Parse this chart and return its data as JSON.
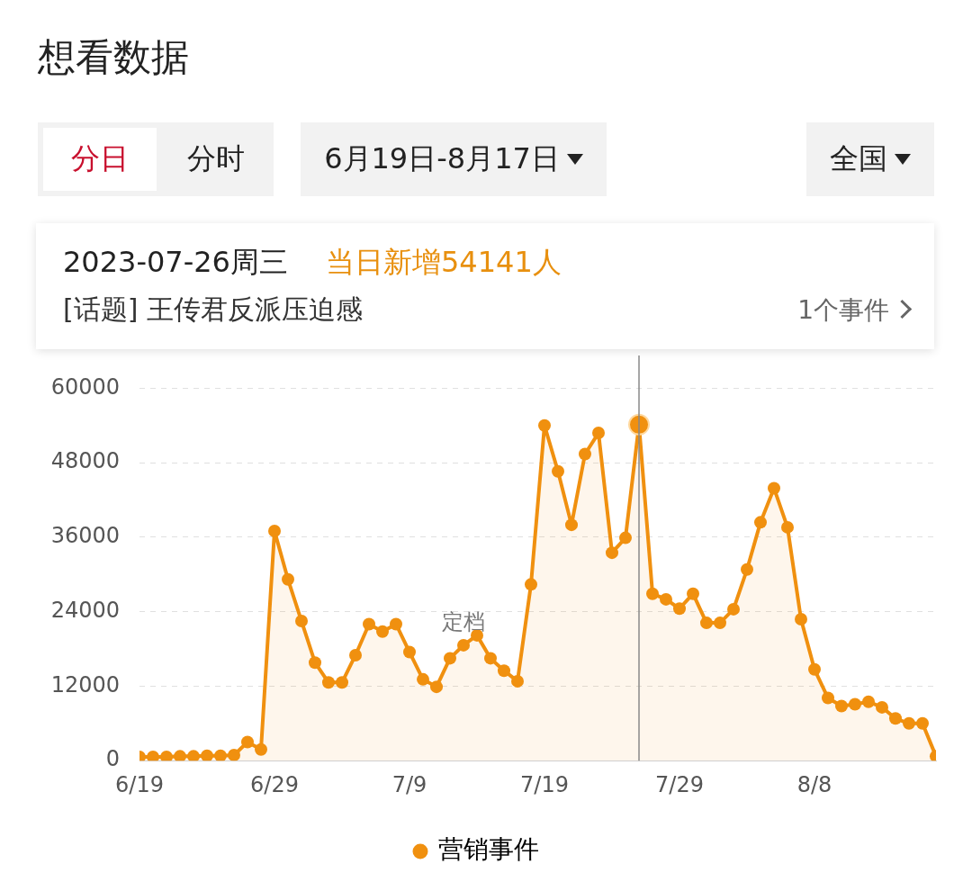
{
  "chart_data": {
    "type": "area",
    "title": "想看数据",
    "x": [
      "2023-06-19",
      "2023-06-20",
      "2023-06-21",
      "2023-06-22",
      "2023-06-23",
      "2023-06-24",
      "2023-06-25",
      "2023-06-26",
      "2023-06-27",
      "2023-06-28",
      "2023-06-29",
      "2023-06-30",
      "2023-07-01",
      "2023-07-02",
      "2023-07-03",
      "2023-07-04",
      "2023-07-05",
      "2023-07-06",
      "2023-07-07",
      "2023-07-08",
      "2023-07-09",
      "2023-07-10",
      "2023-07-11",
      "2023-07-12",
      "2023-07-13",
      "2023-07-14",
      "2023-07-15",
      "2023-07-16",
      "2023-07-17",
      "2023-07-18",
      "2023-07-19",
      "2023-07-20",
      "2023-07-21",
      "2023-07-22",
      "2023-07-23",
      "2023-07-24",
      "2023-07-25",
      "2023-07-26",
      "2023-07-27",
      "2023-07-28",
      "2023-07-29",
      "2023-07-30",
      "2023-07-31",
      "2023-08-01",
      "2023-08-02",
      "2023-08-03",
      "2023-08-04",
      "2023-08-05",
      "2023-08-06",
      "2023-08-07",
      "2023-08-08",
      "2023-08-09",
      "2023-08-10",
      "2023-08-11",
      "2023-08-12",
      "2023-08-13",
      "2023-08-14",
      "2023-08-15",
      "2023-08-16",
      "2023-08-17"
    ],
    "series": [
      {
        "name": "营销事件",
        "color": "#f0900f",
        "values": [
          600,
          600,
          600,
          700,
          700,
          800,
          800,
          900,
          3000,
          1800,
          37000,
          29200,
          22500,
          15800,
          12600,
          12600,
          17000,
          22000,
          20800,
          22000,
          17500,
          13100,
          11900,
          16500,
          18600,
          20200,
          16500,
          14500,
          12800,
          28400,
          54000,
          46600,
          38000,
          49400,
          52800,
          33500,
          35900,
          54141,
          26900,
          26000,
          24500,
          26900,
          22200,
          22200,
          24400,
          30800,
          38400,
          43900,
          37600,
          22800,
          14700,
          10100,
          8800,
          9100,
          9500,
          8600,
          6800,
          6000,
          6000,
          700
        ]
      }
    ],
    "xlim": [
      "2023-06-19",
      "2023-08-17"
    ],
    "xticks": [
      {
        "value": "2023-06-19",
        "label": "6/19"
      },
      {
        "value": "2023-06-29",
        "label": "6/29"
      },
      {
        "value": "2023-07-09",
        "label": "7/9"
      },
      {
        "value": "2023-07-19",
        "label": "7/19"
      },
      {
        "value": "2023-07-29",
        "label": "7/29"
      },
      {
        "value": "2023-08-08",
        "label": "8/8"
      }
    ],
    "ylim": [
      0,
      60000
    ],
    "yticks": [
      0,
      12000,
      24000,
      36000,
      48000,
      60000
    ],
    "grid": "y",
    "legend": "bottom",
    "marker": "circle",
    "line_style": "solid",
    "ref_lines": [
      {
        "axis": "x",
        "value": "2023-07-26",
        "color": "#888888"
      }
    ],
    "annotations": [
      "分日",
      "分时",
      "6月19日-8月17日",
      "全国",
      "2023-07-26周三",
      "当日新增54141人",
      "[话题] 王传君反派压迫感",
      "1个事件",
      {
        "text": "定档",
        "x": "2023-07-13",
        "y": 18600
      }
    ]
  }
}
